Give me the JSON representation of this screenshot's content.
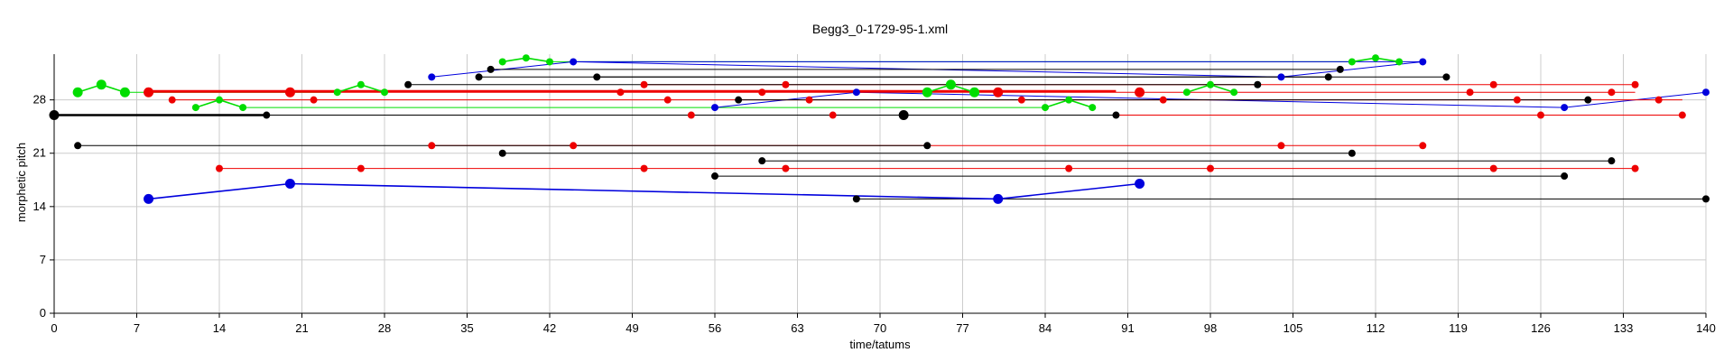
{
  "chart_data": {
    "type": "scatter",
    "title": "Begg3_0-1729-95-1.xml",
    "xlabel": "time/tatums",
    "ylabel": "morphetic pitch",
    "xlim": [
      0,
      140
    ],
    "ylim": [
      0,
      34
    ],
    "xticks": [
      0,
      7,
      14,
      21,
      28,
      35,
      42,
      49,
      56,
      63,
      70,
      77,
      84,
      91,
      98,
      105,
      112,
      119,
      126,
      133,
      140
    ],
    "yticks": [
      0,
      7,
      14,
      21,
      28
    ],
    "grid": true,
    "colors": {
      "green": "#00dd00",
      "blue": "#0000dd",
      "red": "#ee0000",
      "black": "#000000",
      "grid": "#cccccc"
    },
    "series": [
      {
        "color": "green",
        "style": "contour",
        "points": [
          [
            2,
            29
          ],
          [
            4,
            30
          ],
          [
            6,
            29
          ]
        ],
        "big": [
          true,
          true,
          true
        ]
      },
      {
        "color": "green",
        "style": "contour",
        "points": [
          [
            12,
            27
          ],
          [
            14,
            28
          ],
          [
            16,
            27
          ]
        ]
      },
      {
        "color": "green",
        "style": "contour",
        "points": [
          [
            24,
            29
          ],
          [
            26,
            30
          ],
          [
            28,
            29
          ]
        ]
      },
      {
        "color": "green",
        "style": "contour",
        "points": [
          [
            38,
            33
          ],
          [
            40,
            33.5
          ],
          [
            42,
            33
          ]
        ]
      },
      {
        "color": "green",
        "style": "contour",
        "points": [
          [
            74,
            29
          ],
          [
            76,
            30
          ],
          [
            78,
            29
          ]
        ],
        "big": [
          true,
          true,
          true
        ]
      },
      {
        "color": "green",
        "style": "contour",
        "points": [
          [
            84,
            27
          ],
          [
            86,
            28
          ],
          [
            88,
            27
          ]
        ]
      },
      {
        "color": "green",
        "style": "contour",
        "points": [
          [
            96,
            29
          ],
          [
            98,
            30
          ],
          [
            100,
            29
          ]
        ]
      },
      {
        "color": "green",
        "style": "contour",
        "points": [
          [
            110,
            33
          ],
          [
            112,
            33.5
          ],
          [
            114,
            33
          ]
        ]
      },
      {
        "color": "green",
        "style": "line",
        "points": [
          [
            42,
            33
          ],
          [
            110,
            33
          ]
        ]
      },
      {
        "color": "green",
        "style": "line",
        "points": [
          [
            16,
            27
          ],
          [
            84,
            27
          ]
        ]
      },
      {
        "color": "green",
        "style": "line",
        "points": [
          [
            6,
            29
          ],
          [
            24,
            29
          ]
        ]
      },
      {
        "color": "blue",
        "style": "contour",
        "points": [
          [
            8,
            15
          ],
          [
            20,
            17
          ],
          [
            80,
            15
          ],
          [
            92,
            17
          ]
        ],
        "big": [
          true,
          true,
          true,
          true
        ]
      },
      {
        "color": "blue",
        "style": "line",
        "points": [
          [
            32,
            31
          ],
          [
            44,
            33
          ]
        ]
      },
      {
        "color": "blue",
        "style": "line",
        "points": [
          [
            44,
            33
          ],
          [
            116,
            33
          ]
        ]
      },
      {
        "color": "blue",
        "style": "line",
        "points": [
          [
            44,
            33
          ],
          [
            104,
            31
          ]
        ]
      },
      {
        "color": "blue",
        "style": "line",
        "points": [
          [
            104,
            31
          ],
          [
            116,
            33
          ]
        ]
      },
      {
        "color": "blue",
        "style": "line",
        "points": [
          [
            56,
            27
          ],
          [
            68,
            29
          ]
        ]
      },
      {
        "color": "blue",
        "style": "line",
        "points": [
          [
            68,
            29
          ],
          [
            128,
            27
          ]
        ]
      },
      {
        "color": "blue",
        "style": "line",
        "points": [
          [
            128,
            27
          ],
          [
            140,
            29
          ]
        ]
      },
      {
        "color": "blue",
        "style": "points",
        "points": [
          [
            32,
            31
          ],
          [
            44,
            33
          ],
          [
            56,
            27
          ],
          [
            68,
            29
          ],
          [
            104,
            31
          ],
          [
            116,
            33
          ],
          [
            128,
            27
          ],
          [
            140,
            29
          ]
        ]
      },
      {
        "color": "red",
        "style": "line",
        "points": [
          [
            8,
            29
          ],
          [
            134,
            29
          ]
        ]
      },
      {
        "color": "red",
        "style": "line",
        "points": [
          [
            8,
            29.15
          ],
          [
            90,
            29.15
          ]
        ],
        "thick": true
      },
      {
        "color": "red",
        "style": "line",
        "points": [
          [
            10,
            28
          ],
          [
            138,
            28
          ]
        ]
      },
      {
        "color": "red",
        "style": "line",
        "points": [
          [
            50,
            30
          ],
          [
            134,
            30
          ]
        ]
      },
      {
        "color": "red",
        "style": "line",
        "points": [
          [
            54,
            26
          ],
          [
            138,
            26
          ]
        ]
      },
      {
        "color": "red",
        "style": "line",
        "points": [
          [
            32,
            22
          ],
          [
            116,
            22
          ]
        ]
      },
      {
        "color": "red",
        "style": "line",
        "points": [
          [
            14,
            19
          ],
          [
            134,
            19
          ]
        ]
      },
      {
        "color": "red",
        "style": "points",
        "points": [
          [
            10,
            28
          ],
          [
            22,
            28
          ],
          [
            32,
            22
          ],
          [
            44,
            22
          ],
          [
            48,
            29
          ],
          [
            50,
            30
          ],
          [
            50,
            19
          ],
          [
            52,
            28
          ],
          [
            54,
            26
          ],
          [
            60,
            29
          ],
          [
            62,
            30
          ],
          [
            62,
            19
          ],
          [
            64,
            28
          ],
          [
            66,
            26
          ],
          [
            82,
            28
          ],
          [
            86,
            19
          ],
          [
            94,
            28
          ],
          [
            98,
            19
          ],
          [
            104,
            22
          ],
          [
            116,
            22
          ],
          [
            120,
            29
          ],
          [
            122,
            30
          ],
          [
            122,
            19
          ],
          [
            124,
            28
          ],
          [
            126,
            26
          ],
          [
            132,
            29
          ],
          [
            134,
            30
          ],
          [
            134,
            19
          ],
          [
            136,
            28
          ],
          [
            138,
            26
          ],
          [
            14,
            19
          ],
          [
            26,
            19
          ]
        ]
      },
      {
        "color": "red",
        "style": "points",
        "points": [
          [
            8,
            29
          ],
          [
            20,
            29
          ],
          [
            80,
            29
          ],
          [
            92,
            29
          ]
        ],
        "big": [
          true,
          true,
          true,
          true
        ]
      },
      {
        "color": "black",
        "style": "line",
        "points": [
          [
            0,
            26
          ],
          [
            18,
            26
          ]
        ],
        "thick": true
      },
      {
        "color": "black",
        "style": "line",
        "points": [
          [
            18,
            26
          ],
          [
            90,
            26
          ]
        ]
      },
      {
        "color": "black",
        "style": "line",
        "points": [
          [
            2,
            22
          ],
          [
            74,
            22
          ]
        ]
      },
      {
        "color": "black",
        "style": "line",
        "points": [
          [
            38,
            21
          ],
          [
            110,
            21
          ]
        ]
      },
      {
        "color": "black",
        "style": "line",
        "points": [
          [
            60,
            20
          ],
          [
            132,
            20
          ]
        ]
      },
      {
        "color": "black",
        "style": "line",
        "points": [
          [
            56,
            18
          ],
          [
            128,
            18
          ]
        ]
      },
      {
        "color": "black",
        "style": "line",
        "points": [
          [
            68,
            15
          ],
          [
            140,
            15
          ]
        ]
      },
      {
        "color": "black",
        "style": "line",
        "points": [
          [
            30,
            30
          ],
          [
            102,
            30
          ]
        ]
      },
      {
        "color": "black",
        "style": "line",
        "points": [
          [
            36,
            31
          ],
          [
            108,
            31
          ]
        ]
      },
      {
        "color": "black",
        "style": "line",
        "points": [
          [
            37,
            32
          ],
          [
            109,
            32
          ]
        ]
      },
      {
        "color": "black",
        "style": "line",
        "points": [
          [
            46,
            31
          ],
          [
            118,
            31
          ]
        ]
      },
      {
        "color": "black",
        "style": "line",
        "points": [
          [
            58,
            28
          ],
          [
            130,
            28
          ]
        ]
      },
      {
        "color": "black",
        "style": "points",
        "points": [
          [
            2,
            22
          ],
          [
            18,
            26
          ],
          [
            30,
            30
          ],
          [
            36,
            31
          ],
          [
            37,
            32
          ],
          [
            38,
            21
          ],
          [
            46,
            31
          ],
          [
            56,
            18
          ],
          [
            58,
            28
          ],
          [
            60,
            20
          ],
          [
            68,
            15
          ],
          [
            74,
            22
          ],
          [
            90,
            26
          ],
          [
            102,
            30
          ],
          [
            108,
            31
          ],
          [
            109,
            32
          ],
          [
            110,
            21
          ],
          [
            118,
            31
          ],
          [
            128,
            18
          ],
          [
            130,
            28
          ],
          [
            132,
            20
          ],
          [
            140,
            15
          ]
        ]
      },
      {
        "color": "black",
        "style": "points",
        "points": [
          [
            0,
            26
          ],
          [
            72,
            26
          ]
        ],
        "big": [
          true,
          true
        ]
      }
    ]
  }
}
